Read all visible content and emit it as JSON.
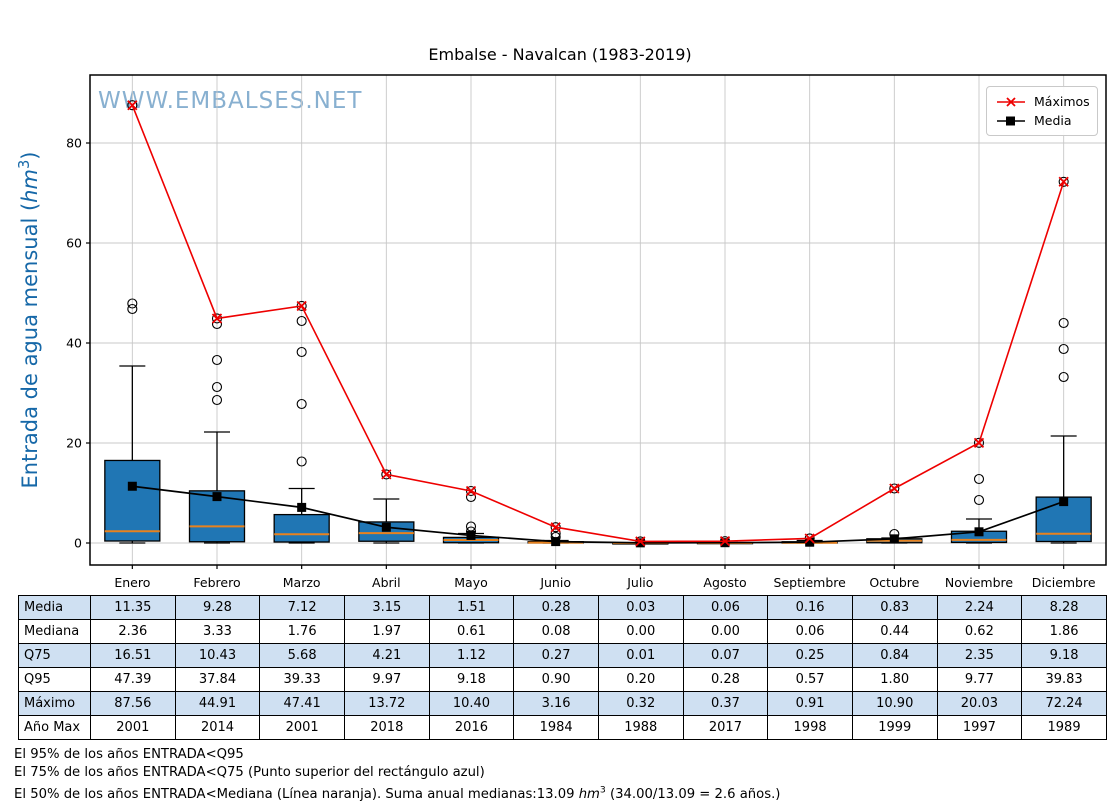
{
  "title": "Embalse - Navalcan (1983-2019)",
  "watermark": "WWW.EMBALSES.NET",
  "y_axis": {
    "label_pre": "Entrada de agua mensual (",
    "label_unit": "hm",
    "label_sup": "3",
    "label_post": ")"
  },
  "legend": {
    "items": [
      {
        "label": "Máximos"
      },
      {
        "label": "Media"
      }
    ]
  },
  "colors": {
    "box_fill": "#2076b4",
    "box_edge": "#000000",
    "median": "#e8821e",
    "maximos": "#ee0000",
    "media": "#000000",
    "whisker": "#000000",
    "flier": "#000000",
    "grid": "#c8c8c8",
    "watermark": "#7ca8cc",
    "ylabel": "#1668a8",
    "table_shade": "#cfe0f2",
    "table_white": "#ffffff"
  },
  "chart_data": {
    "type": "boxplot+line",
    "title": "Embalse - Navalcan (1983-2019)",
    "ylabel": "Entrada de agua mensual (hm3)",
    "categories": [
      "Enero",
      "Febrero",
      "Marzo",
      "Abril",
      "Mayo",
      "Junio",
      "Julio",
      "Agosto",
      "Septiembre",
      "Octubre",
      "Noviembre",
      "Diciembre"
    ],
    "ylim": [
      -4.4,
      93.6
    ],
    "yticks": [
      0,
      20,
      40,
      60,
      80
    ],
    "grid": true,
    "legend_position": "upper right",
    "series": [
      {
        "name": "Máximos",
        "marker": "x",
        "values": [
          87.56,
          44.91,
          47.41,
          13.72,
          10.4,
          3.16,
          0.32,
          0.37,
          0.91,
          10.9,
          20.03,
          72.24
        ]
      },
      {
        "name": "Media",
        "marker": "square",
        "values": [
          11.35,
          9.28,
          7.12,
          3.15,
          1.51,
          0.28,
          0.03,
          0.06,
          0.16,
          0.83,
          2.24,
          8.28
        ]
      }
    ],
    "boxplot": {
      "q3": [
        16.51,
        10.43,
        5.68,
        4.21,
        1.12,
        0.27,
        0.01,
        0.07,
        0.25,
        0.84,
        2.35,
        9.18
      ],
      "median": [
        2.36,
        3.33,
        1.76,
        1.97,
        0.61,
        0.08,
        0.0,
        0.0,
        0.06,
        0.44,
        0.62,
        1.86
      ],
      "q1": [
        0.4,
        0.25,
        0.2,
        0.35,
        0.05,
        0.01,
        0.0,
        0.0,
        0.01,
        0.05,
        0.1,
        0.3
      ],
      "whisker_low": [
        0,
        0,
        0,
        0,
        0,
        0,
        0,
        0,
        0,
        0,
        0,
        0
      ],
      "whisker_high": [
        35.4,
        22.2,
        10.9,
        8.8,
        1.9,
        0.5,
        0.03,
        0.1,
        0.5,
        1.0,
        4.8,
        21.4
      ],
      "fliers": [
        [
          46.8,
          47.9,
          87.56
        ],
        [
          28.6,
          31.2,
          36.6,
          43.8,
          44.91
        ],
        [
          16.3,
          27.8,
          38.2,
          44.4,
          47.41
        ],
        [
          13.72
        ],
        [
          2.3,
          3.3,
          9.2,
          10.4
        ],
        [
          1.2,
          1.9,
          3.16
        ],
        [
          0.32
        ],
        [
          0.37
        ],
        [
          0.91
        ],
        [
          1.8,
          10.9
        ],
        [
          8.6,
          12.8,
          20.03
        ],
        [
          33.2,
          38.8,
          44.0,
          72.24
        ]
      ]
    }
  },
  "table": {
    "row_labels": [
      "Media",
      "Mediana",
      "Q75",
      "Q95",
      "Máximo",
      "Año Max"
    ],
    "rows": [
      [
        "11.35",
        "9.28",
        "7.12",
        "3.15",
        "1.51",
        "0.28",
        "0.03",
        "0.06",
        "0.16",
        "0.83",
        "2.24",
        "8.28"
      ],
      [
        "2.36",
        "3.33",
        "1.76",
        "1.97",
        "0.61",
        "0.08",
        "0.00",
        "0.00",
        "0.06",
        "0.44",
        "0.62",
        "1.86"
      ],
      [
        "16.51",
        "10.43",
        "5.68",
        "4.21",
        "1.12",
        "0.27",
        "0.01",
        "0.07",
        "0.25",
        "0.84",
        "2.35",
        "9.18"
      ],
      [
        "47.39",
        "37.84",
        "39.33",
        "9.97",
        "9.18",
        "0.90",
        "0.20",
        "0.28",
        "0.57",
        "1.80",
        "9.77",
        "39.83"
      ],
      [
        "87.56",
        "44.91",
        "47.41",
        "13.72",
        "10.40",
        "3.16",
        "0.32",
        "0.37",
        "0.91",
        "10.90",
        "20.03",
        "72.24"
      ],
      [
        "2001",
        "2014",
        "2001",
        "2018",
        "2016",
        "1984",
        "1988",
        "2017",
        "1998",
        "1999",
        "1997",
        "1989"
      ]
    ]
  },
  "notes": {
    "line1": "El 95% de los años ENTRADA<Q95",
    "line2": "El 75% de los años ENTRADA<Q75 (Punto superior del rectángulo azul)",
    "line3_pre": "El 50% de los años ENTRADA<Mediana (Línea naranja). Suma anual medianas:13.09 ",
    "line3_unit": "hm",
    "line3_sup": "3",
    "line3_post": " (34.00/13.09 = 2.6 años.)"
  }
}
